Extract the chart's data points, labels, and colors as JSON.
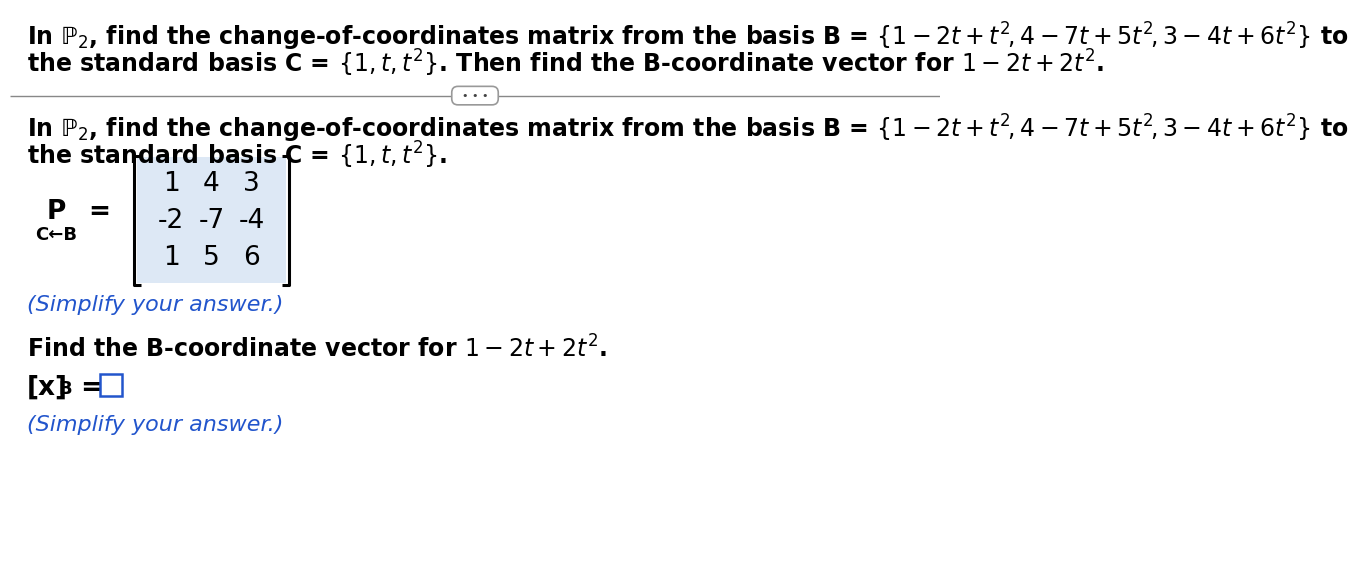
{
  "bg_color": "#ffffff",
  "top_line1": "In $\\mathbb{P}_2$, find the change-of-coordinates matrix from the basis B = $\\{1 - 2t + t^2\\!,4 - 7t + 5t^2\\!,3 - 4t + 6t^2\\}$ to",
  "top_line2": "the standard basis C = $\\{1,t,t^2\\}$. Then find the B-coordinate vector for $1 - 2t + 2t^2$.",
  "bot_line1": "In $\\mathbb{P}_2$, find the change-of-coordinates matrix from the basis B = $\\{1 - 2t + t^2\\!,4 - 7t + 5t^2\\!,3 - 4t + 6t^2\\}$ to",
  "bot_line2": "the standard basis C = $\\{1,t,t^2\\}$.",
  "matrix": [
    [
      1,
      4,
      3
    ],
    [
      -2,
      -7,
      -4
    ],
    [
      1,
      5,
      6
    ]
  ],
  "P_label": "P",
  "eq_label": "=",
  "sub_label": "C←B",
  "simplify1": "(Simplify your answer.)",
  "find_text": "Find the B-coordinate vector for $1 - 2t + 2t^2$.",
  "xb_label": "[x]",
  "xb_sub": "B",
  "xb_eq": " = ",
  "simplify2": "(Simplify your answer.)",
  "text_color": "#000000",
  "blue_color": "#2255cc",
  "matrix_bg": "#dde8f5",
  "divider_color": "#888888",
  "fs_main": 17,
  "fs_matrix": 19,
  "fs_small": 16,
  "fs_sub": 13
}
